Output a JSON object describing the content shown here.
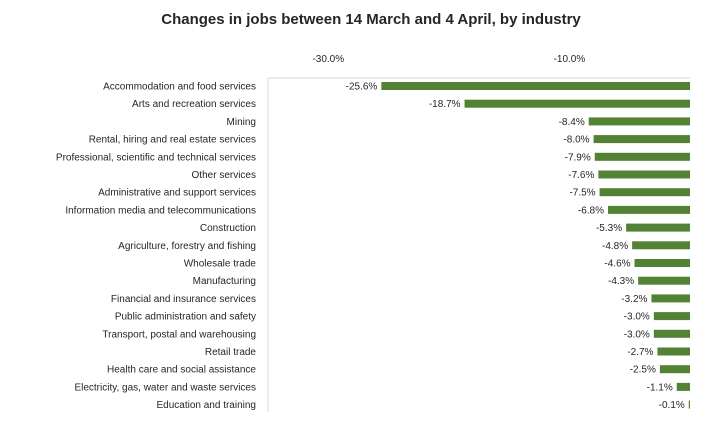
{
  "chart_data": {
    "type": "bar",
    "orientation": "horizontal",
    "title": "Changes in jobs between 14 March and 4 April, by industry",
    "xlabel": "",
    "ylabel": "",
    "xlim": [
      -0.35,
      0.0
    ],
    "x_ticks": [
      -0.3,
      -0.1
    ],
    "tick_labels": [
      "-30.0%",
      "-10.0%"
    ],
    "axis_position": "top",
    "grid": false,
    "legend": "none",
    "bar_color": "#548235",
    "categories": [
      "Accommodation and food services",
      "Arts and recreation services",
      "Mining",
      "Rental, hiring and real estate services",
      "Professional, scientific and technical services",
      "Other services",
      "Administrative and support services",
      "Information media and telecommunications",
      "Construction",
      "Agriculture, forestry and fishing",
      "Wholesale trade",
      "Manufacturing",
      "Financial and insurance services",
      "Public administration and safety",
      "Transport, postal and warehousing",
      "Retail trade",
      "Health care and social assistance",
      "Electricity, gas, water and waste services",
      "Education and training"
    ],
    "values": [
      -0.256,
      -0.187,
      -0.084,
      -0.08,
      -0.079,
      -0.076,
      -0.075,
      -0.068,
      -0.053,
      -0.048,
      -0.046,
      -0.043,
      -0.032,
      -0.03,
      -0.03,
      -0.027,
      -0.025,
      -0.011,
      -0.001
    ],
    "data_labels": [
      "-25.6%",
      "-18.7%",
      "-8.4%",
      "-8.0%",
      "-7.9%",
      "-7.6%",
      "-7.5%",
      "-6.8%",
      "-5.3%",
      "-4.8%",
      "-4.6%",
      "-4.3%",
      "-3.2%",
      "-3.0%",
      "-3.0%",
      "-2.7%",
      "-2.5%",
      "-1.1%",
      "-0.1%"
    ]
  }
}
